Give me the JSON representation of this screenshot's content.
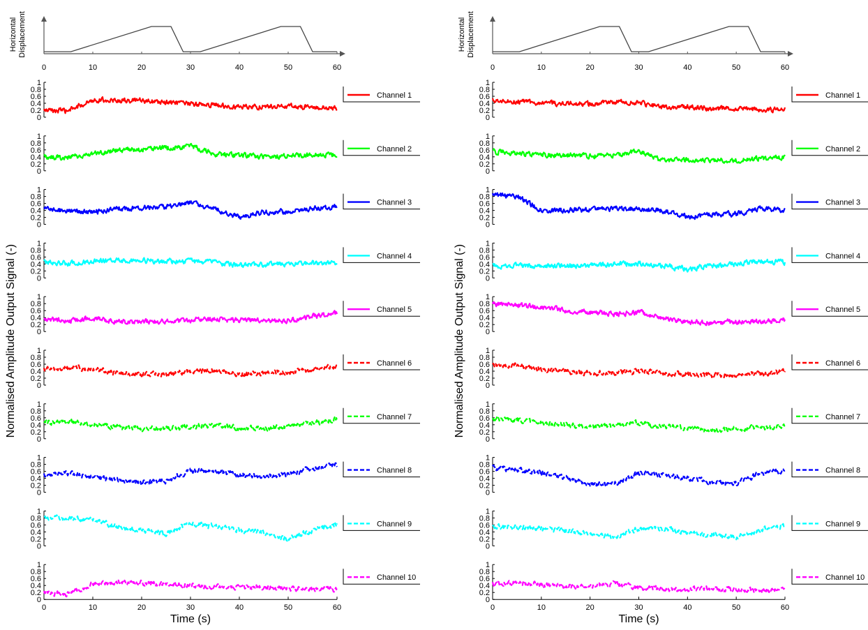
{
  "figure": {
    "ylabel": "Normalised Amplitude Output Signal (-)",
    "xlabel": "Time (s)",
    "displacement_label_line1": "Horizontal",
    "displacement_label_line2": "Displacement",
    "x_ticks": [
      "0",
      "10",
      "20",
      "30",
      "40",
      "50",
      "60"
    ],
    "y_ticks": [
      "0",
      "0.2",
      "0.4",
      "0.6",
      "0.8",
      "1"
    ]
  },
  "chart_data": [
    {
      "type": "line",
      "panel": "left",
      "xlim": [
        0,
        60
      ],
      "ylim": [
        0,
        1
      ],
      "displacement": {
        "x": [
          0,
          5.5,
          22,
          26,
          28.5,
          32,
          48.5,
          52.5,
          55,
          60
        ],
        "y": [
          0.05,
          0.05,
          1,
          1,
          0.05,
          0.05,
          1,
          1,
          0.05,
          0.05
        ]
      },
      "x": [
        0,
        5,
        10,
        15,
        20,
        25,
        30,
        35,
        40,
        45,
        50,
        55,
        60
      ],
      "series": [
        {
          "name": "Channel   1",
          "color": "#ff0000",
          "dashed": false,
          "values": [
            0.2,
            0.18,
            0.5,
            0.48,
            0.47,
            0.42,
            0.38,
            0.35,
            0.3,
            0.3,
            0.32,
            0.28,
            0.25
          ]
        },
        {
          "name": "Channel   2",
          "color": "#00ff00",
          "dashed": false,
          "values": [
            0.4,
            0.38,
            0.5,
            0.6,
            0.62,
            0.65,
            0.72,
            0.48,
            0.45,
            0.4,
            0.42,
            0.45,
            0.45
          ]
        },
        {
          "name": "Channel   3",
          "color": "#0000ff",
          "dashed": false,
          "values": [
            0.45,
            0.38,
            0.35,
            0.45,
            0.48,
            0.5,
            0.62,
            0.45,
            0.2,
            0.35,
            0.38,
            0.45,
            0.5
          ]
        },
        {
          "name": "Channel   4",
          "color": "#00ffff",
          "dashed": false,
          "values": [
            0.45,
            0.42,
            0.48,
            0.5,
            0.5,
            0.47,
            0.48,
            0.45,
            0.35,
            0.38,
            0.4,
            0.42,
            0.42
          ]
        },
        {
          "name": "Channel   5",
          "color": "#ff00ff",
          "dashed": false,
          "values": [
            0.35,
            0.32,
            0.38,
            0.28,
            0.28,
            0.3,
            0.32,
            0.35,
            0.32,
            0.3,
            0.32,
            0.45,
            0.52
          ]
        },
        {
          "name": "Channel   6",
          "color": "#ff0000",
          "dashed": true,
          "values": [
            0.45,
            0.5,
            0.45,
            0.35,
            0.32,
            0.3,
            0.4,
            0.42,
            0.3,
            0.35,
            0.38,
            0.45,
            0.55
          ]
        },
        {
          "name": "Channel   7",
          "color": "#00ff00",
          "dashed": true,
          "values": [
            0.45,
            0.5,
            0.4,
            0.35,
            0.28,
            0.3,
            0.35,
            0.4,
            0.3,
            0.3,
            0.35,
            0.45,
            0.55
          ]
        },
        {
          "name": "Channel   8",
          "color": "#0000ff",
          "dashed": true,
          "values": [
            0.5,
            0.55,
            0.45,
            0.35,
            0.28,
            0.3,
            0.62,
            0.6,
            0.5,
            0.45,
            0.5,
            0.7,
            0.8
          ]
        },
        {
          "name": "Channel   9",
          "color": "#00ffff",
          "dashed": true,
          "values": [
            0.8,
            0.8,
            0.75,
            0.55,
            0.45,
            0.35,
            0.65,
            0.55,
            0.45,
            0.38,
            0.2,
            0.45,
            0.6
          ]
        },
        {
          "name": "Channel   10",
          "color": "#ff00ff",
          "dashed": true,
          "values": [
            0.2,
            0.15,
            0.45,
            0.5,
            0.48,
            0.45,
            0.4,
            0.38,
            0.35,
            0.35,
            0.3,
            0.3,
            0.28
          ]
        }
      ]
    },
    {
      "type": "line",
      "panel": "right",
      "xlim": [
        0,
        60
      ],
      "ylim": [
        0,
        1
      ],
      "displacement": {
        "x": [
          0,
          5.5,
          22,
          26,
          28.5,
          32,
          48.5,
          52.5,
          55,
          60
        ],
        "y": [
          0.05,
          0.05,
          1,
          1,
          0.05,
          0.05,
          1,
          1,
          0.05,
          0.05
        ]
      },
      "x": [
        0,
        5,
        10,
        15,
        20,
        25,
        30,
        35,
        40,
        45,
        50,
        55,
        60
      ],
      "series": [
        {
          "name": "Channel   1",
          "color": "#ff0000",
          "dashed": false,
          "values": [
            0.5,
            0.45,
            0.4,
            0.4,
            0.38,
            0.45,
            0.4,
            0.3,
            0.3,
            0.25,
            0.25,
            0.22,
            0.22
          ]
        },
        {
          "name": "Channel   2",
          "color": "#00ff00",
          "dashed": false,
          "values": [
            0.55,
            0.5,
            0.45,
            0.45,
            0.42,
            0.45,
            0.55,
            0.3,
            0.3,
            0.3,
            0.3,
            0.35,
            0.38
          ]
        },
        {
          "name": "Channel   3",
          "color": "#0000ff",
          "dashed": false,
          "values": [
            0.85,
            0.8,
            0.4,
            0.4,
            0.42,
            0.45,
            0.45,
            0.4,
            0.2,
            0.3,
            0.3,
            0.45,
            0.4
          ]
        },
        {
          "name": "Channel   4",
          "color": "#00ffff",
          "dashed": false,
          "values": [
            0.35,
            0.35,
            0.35,
            0.35,
            0.35,
            0.4,
            0.42,
            0.35,
            0.25,
            0.35,
            0.4,
            0.48,
            0.45
          ]
        },
        {
          "name": "Channel   5",
          "color": "#ff00ff",
          "dashed": false,
          "values": [
            0.8,
            0.75,
            0.7,
            0.62,
            0.55,
            0.5,
            0.55,
            0.38,
            0.28,
            0.25,
            0.28,
            0.3,
            0.32
          ]
        },
        {
          "name": "Channel   6",
          "color": "#ff0000",
          "dashed": true,
          "values": [
            0.55,
            0.55,
            0.45,
            0.38,
            0.35,
            0.35,
            0.4,
            0.35,
            0.3,
            0.28,
            0.3,
            0.32,
            0.38
          ]
        },
        {
          "name": "Channel   7",
          "color": "#00ff00",
          "dashed": true,
          "values": [
            0.55,
            0.55,
            0.45,
            0.38,
            0.35,
            0.38,
            0.45,
            0.35,
            0.3,
            0.25,
            0.3,
            0.3,
            0.35
          ]
        },
        {
          "name": "Channel   8",
          "color": "#0000ff",
          "dashed": true,
          "values": [
            0.7,
            0.65,
            0.55,
            0.4,
            0.22,
            0.25,
            0.55,
            0.5,
            0.4,
            0.3,
            0.25,
            0.55,
            0.6
          ]
        },
        {
          "name": "Channel   9",
          "color": "#00ffff",
          "dashed": true,
          "values": [
            0.55,
            0.55,
            0.5,
            0.45,
            0.35,
            0.25,
            0.5,
            0.5,
            0.38,
            0.32,
            0.25,
            0.45,
            0.6
          ]
        },
        {
          "name": "Channel   10",
          "color": "#ff00ff",
          "dashed": true,
          "values": [
            0.45,
            0.5,
            0.42,
            0.38,
            0.35,
            0.45,
            0.35,
            0.3,
            0.3,
            0.3,
            0.28,
            0.25,
            0.25
          ]
        }
      ]
    }
  ]
}
